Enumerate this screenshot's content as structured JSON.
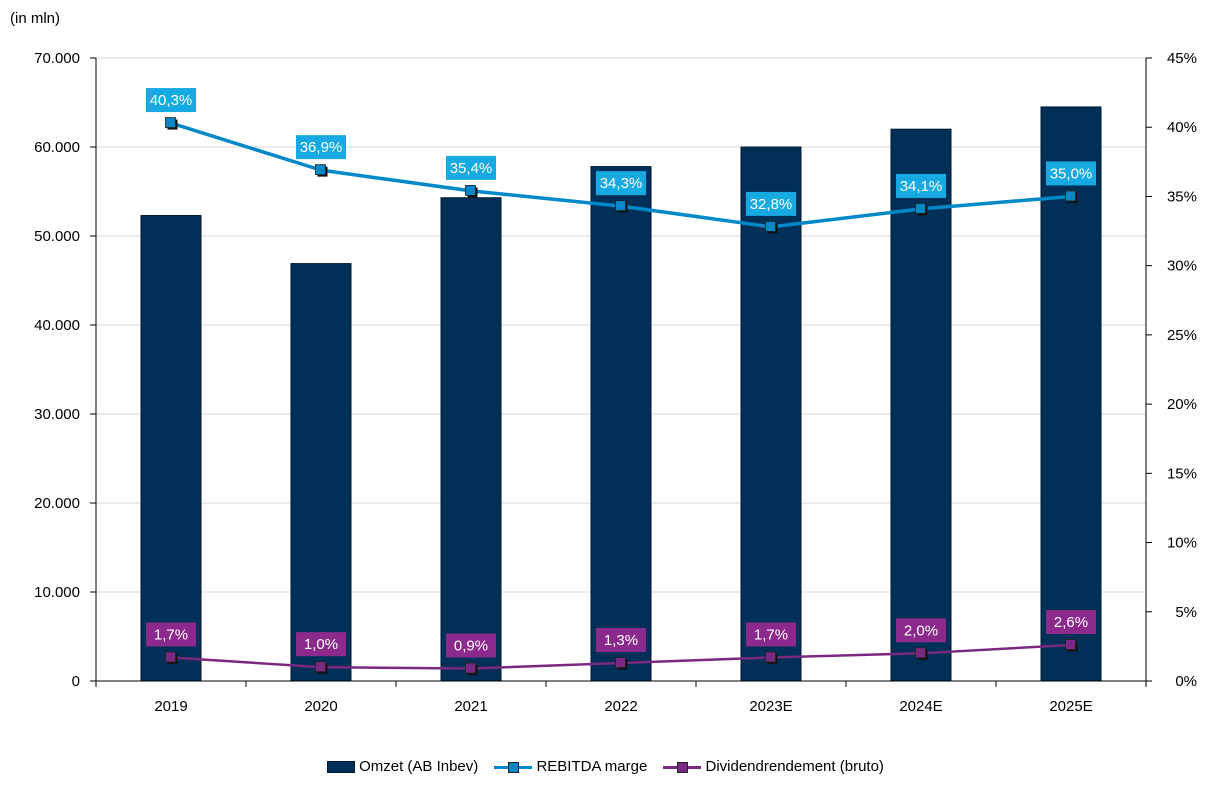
{
  "unit_label": "(in mln)",
  "colors": {
    "bars": "#003057",
    "rebitda": "#0088c8",
    "rebitda_label_bg": "#17a9e1",
    "dividend": "#7b2882",
    "dividend_label_bg": "#8b2a8c",
    "grid": "#d9d9d9"
  },
  "legend": {
    "omzet": "Omzet (AB Inbev)",
    "rebitda": "REBITDA marge",
    "dividend": "Dividendrendement (bruto)"
  },
  "chart_data": {
    "type": "bar",
    "categories": [
      "2019",
      "2020",
      "2021",
      "2022",
      "2023E",
      "2024E",
      "2025E"
    ],
    "left_axis": {
      "ylim": [
        0,
        70000
      ],
      "ticks": [
        "0",
        "10.000",
        "20.000",
        "30.000",
        "40.000",
        "50.000",
        "60.000",
        "70.000"
      ]
    },
    "right_axis": {
      "ylim": [
        0,
        45
      ],
      "ticks": [
        "0%",
        "5%",
        "10%",
        "15%",
        "20%",
        "25%",
        "30%",
        "35%",
        "40%",
        "45%"
      ]
    },
    "grid": true,
    "legend_position": "bottom",
    "series": [
      {
        "name": "Omzet (AB Inbev)",
        "type": "bar",
        "axis": "left",
        "values": [
          52300,
          46900,
          54300,
          57800,
          60000,
          62000,
          64500
        ]
      },
      {
        "name": "REBITDA marge",
        "type": "line",
        "axis": "right",
        "values": [
          40.3,
          36.9,
          35.4,
          34.3,
          32.8,
          34.1,
          35.0
        ],
        "labels": [
          "40,3%",
          "36,9%",
          "35,4%",
          "34,3%",
          "32,8%",
          "34,1%",
          "35,0%"
        ]
      },
      {
        "name": "Dividendrendement (bruto)",
        "type": "line",
        "axis": "right",
        "values": [
          1.7,
          1.0,
          0.9,
          1.3,
          1.7,
          2.0,
          2.6
        ],
        "labels": [
          "1,7%",
          "1,0%",
          "0,9%",
          "1,3%",
          "1,7%",
          "2,0%",
          "2,6%"
        ]
      }
    ]
  }
}
